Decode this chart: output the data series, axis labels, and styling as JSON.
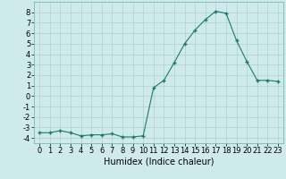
{
  "x": [
    0,
    1,
    2,
    3,
    4,
    5,
    6,
    7,
    8,
    9,
    10,
    11,
    12,
    13,
    14,
    15,
    16,
    17,
    18,
    19,
    20,
    21,
    22,
    23
  ],
  "y": [
    -3.5,
    -3.5,
    -3.3,
    -3.5,
    -3.8,
    -3.7,
    -3.7,
    -3.6,
    -3.9,
    -3.9,
    -3.8,
    0.8,
    1.5,
    3.2,
    5.0,
    6.3,
    7.3,
    8.1,
    7.9,
    5.3,
    3.3,
    1.5,
    1.5,
    1.4
  ],
  "line_color": "#1a7a6e",
  "marker": "+",
  "marker_size": 3,
  "marker_lw": 1.0,
  "bg_color": "#ceeaea",
  "grid_color": "#b0d0d0",
  "xlabel": "Humidex (Indice chaleur)",
  "xlabel_fontsize": 7,
  "tick_fontsize": 6,
  "xlim": [
    -0.5,
    23.5
  ],
  "ylim": [
    -4.5,
    9.0
  ],
  "yticks": [
    -4,
    -3,
    -2,
    -1,
    0,
    1,
    2,
    3,
    4,
    5,
    6,
    7,
    8
  ],
  "xticks": [
    0,
    1,
    2,
    3,
    4,
    5,
    6,
    7,
    8,
    9,
    10,
    11,
    12,
    13,
    14,
    15,
    16,
    17,
    18,
    19,
    20,
    21,
    22,
    23
  ]
}
